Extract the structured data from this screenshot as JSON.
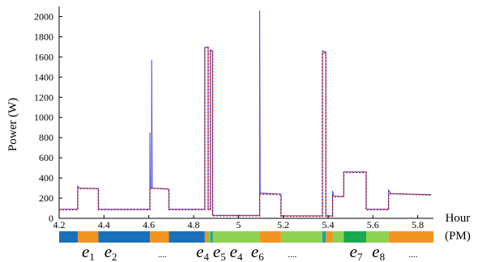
{
  "chart_data": {
    "type": "line",
    "xlabel": "Hour",
    "xlabel_unit": "(PM)",
    "ylabel": "Power (W)",
    "xlim": [
      4.2,
      5.87
    ],
    "ylim": [
      0,
      2100
    ],
    "xticks": [
      "4.2",
      "4.4",
      "4.6",
      "4.8",
      "5",
      "5.2",
      "5.4",
      "5.6",
      "5.8"
    ],
    "yticks": [
      "0",
      "200",
      "400",
      "600",
      "800",
      "1000",
      "1200",
      "1400",
      "1600",
      "1800",
      "2000"
    ],
    "grid": false,
    "series": [
      {
        "name": "",
        "color": "#3b3bdc",
        "style": "solid",
        "points": [
          [
            4.2,
            90
          ],
          [
            4.283,
            90
          ],
          [
            4.283,
            320
          ],
          [
            4.29,
            300
          ],
          [
            4.375,
            295
          ],
          [
            4.375,
            90
          ],
          [
            4.6,
            90
          ],
          [
            4.605,
            90
          ],
          [
            4.605,
            850
          ],
          [
            4.607,
            300
          ],
          [
            4.613,
            300
          ],
          [
            4.613,
            1570
          ],
          [
            4.615,
            300
          ],
          [
            4.69,
            290
          ],
          [
            4.69,
            90
          ],
          [
            4.85,
            90
          ],
          [
            4.85,
            1690
          ],
          [
            4.865,
            1700
          ],
          [
            4.865,
            90
          ],
          [
            4.875,
            90
          ],
          [
            4.875,
            1670
          ],
          [
            4.885,
            1660
          ],
          [
            4.885,
            30
          ],
          [
            5.09,
            30
          ],
          [
            5.095,
            30
          ],
          [
            5.095,
            2060
          ],
          [
            5.097,
            250
          ],
          [
            5.19,
            240
          ],
          [
            5.19,
            25
          ],
          [
            5.375,
            25
          ],
          [
            5.375,
            1660
          ],
          [
            5.39,
            1650
          ],
          [
            5.39,
            25
          ],
          [
            5.42,
            25
          ],
          [
            5.42,
            270
          ],
          [
            5.425,
            220
          ],
          [
            5.47,
            215
          ],
          [
            5.47,
            460
          ],
          [
            5.57,
            460
          ],
          [
            5.57,
            90
          ],
          [
            5.67,
            90
          ],
          [
            5.67,
            280
          ],
          [
            5.68,
            245
          ],
          [
            5.86,
            235
          ]
        ]
      },
      {
        "name": "",
        "color": "#c21818",
        "style": "dotted",
        "points": [
          [
            4.2,
            85
          ],
          [
            4.283,
            85
          ],
          [
            4.283,
            295
          ],
          [
            4.375,
            295
          ],
          [
            4.375,
            85
          ],
          [
            4.605,
            85
          ],
          [
            4.605,
            300
          ],
          [
            4.69,
            290
          ],
          [
            4.69,
            85
          ],
          [
            4.85,
            85
          ],
          [
            4.85,
            1690
          ],
          [
            4.865,
            1690
          ],
          [
            4.865,
            85
          ],
          [
            4.875,
            85
          ],
          [
            4.875,
            1660
          ],
          [
            4.885,
            1660
          ],
          [
            4.885,
            25
          ],
          [
            5.095,
            25
          ],
          [
            5.095,
            240
          ],
          [
            5.19,
            235
          ],
          [
            5.19,
            20
          ],
          [
            5.375,
            20
          ],
          [
            5.375,
            1640
          ],
          [
            5.39,
            1640
          ],
          [
            5.39,
            20
          ],
          [
            5.42,
            20
          ],
          [
            5.42,
            215
          ],
          [
            5.47,
            215
          ],
          [
            5.47,
            455
          ],
          [
            5.57,
            455
          ],
          [
            5.57,
            85
          ],
          [
            5.67,
            85
          ],
          [
            5.67,
            245
          ],
          [
            5.86,
            230
          ]
        ]
      }
    ],
    "event_bar": [
      {
        "from": 4.2,
        "to": 4.283,
        "color": "#1a70b8"
      },
      {
        "from": 4.283,
        "to": 4.375,
        "color": "#f29422"
      },
      {
        "from": 4.375,
        "to": 4.605,
        "color": "#1a70b8"
      },
      {
        "from": 4.605,
        "to": 4.69,
        "color": "#f29422"
      },
      {
        "from": 4.69,
        "to": 4.85,
        "color": "#1a70b8"
      },
      {
        "from": 4.85,
        "to": 4.865,
        "color": "#f29422"
      },
      {
        "from": 4.865,
        "to": 4.875,
        "color": "#7ccd4f"
      },
      {
        "from": 4.875,
        "to": 4.885,
        "color": "#1fa0a8"
      },
      {
        "from": 4.885,
        "to": 5.095,
        "color": "#8ed155"
      },
      {
        "from": 5.095,
        "to": 5.19,
        "color": "#f29422"
      },
      {
        "from": 5.19,
        "to": 5.375,
        "color": "#8ed155"
      },
      {
        "from": 5.375,
        "to": 5.39,
        "color": "#1fa0a8"
      },
      {
        "from": 5.39,
        "to": 5.42,
        "color": "#f29422"
      },
      {
        "from": 5.42,
        "to": 5.47,
        "color": "#8ed155"
      },
      {
        "from": 5.47,
        "to": 5.57,
        "color": "#1aa850"
      },
      {
        "from": 5.57,
        "to": 5.67,
        "color": "#8ed155"
      },
      {
        "from": 5.67,
        "to": 5.87,
        "color": "#f29422"
      }
    ],
    "event_labels": [
      {
        "id": "e1",
        "base": "e",
        "sub": "1",
        "at": 4.33
      },
      {
        "id": "e2",
        "base": "e",
        "sub": "2",
        "at": 4.43
      },
      {
        "id": "d1",
        "text": "....",
        "at": 4.66
      },
      {
        "id": "e4a",
        "base": "e",
        "sub": "4",
        "at": 4.84
      },
      {
        "id": "e5",
        "base": "e",
        "sub": "5",
        "at": 4.915
      },
      {
        "id": "e4b",
        "base": "e",
        "sub": "4",
        "at": 4.99
      },
      {
        "id": "e6",
        "base": "e",
        "sub": "6",
        "at": 5.085
      },
      {
        "id": "d2",
        "text": "....",
        "at": 5.24
      },
      {
        "id": "e7",
        "base": "e",
        "sub": "7",
        "at": 5.525
      },
      {
        "id": "e8",
        "base": "e",
        "sub": "8",
        "at": 5.625
      },
      {
        "id": "d3",
        "text": "....",
        "at": 5.78
      }
    ]
  }
}
